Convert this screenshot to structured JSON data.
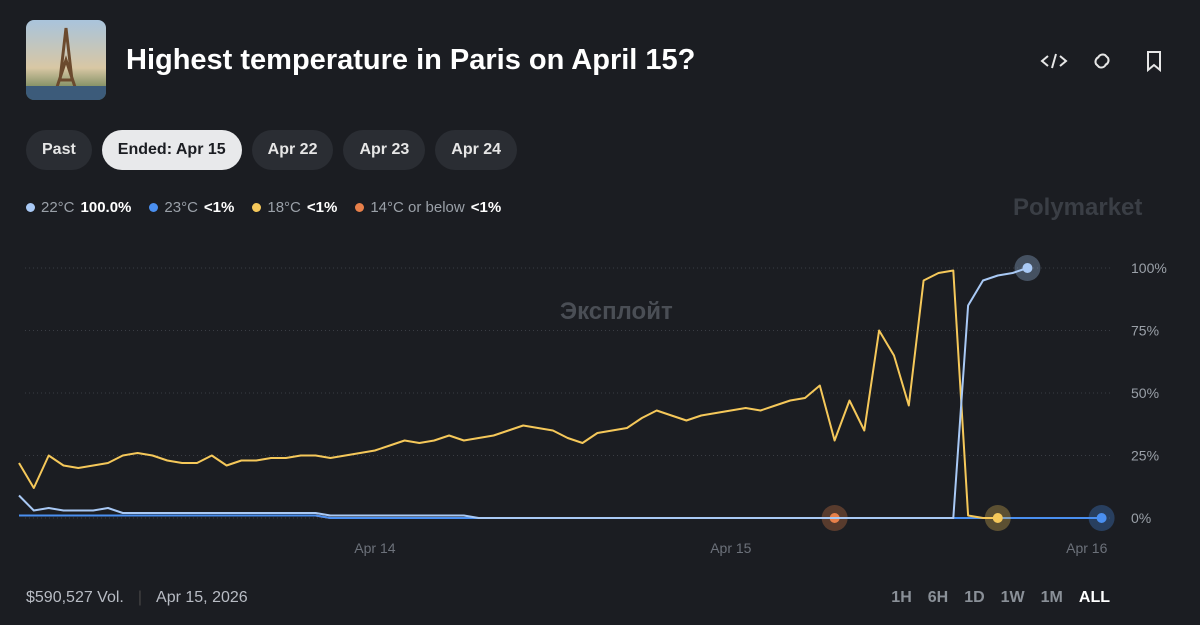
{
  "header": {
    "title": "Highest temperature in Paris on April 15?"
  },
  "filters": [
    "Past",
    "Ended: Apr 15",
    "Apr 22",
    "Apr 23",
    "Apr 24"
  ],
  "watermarks": [
    "Polymarket",
    "Эксплойт"
  ],
  "chart_data": {
    "type": "line",
    "categories": [
      null,
      null,
      null,
      null,
      null,
      null,
      null,
      null,
      null,
      null,
      null,
      null,
      null,
      null,
      null,
      null,
      null,
      null,
      null,
      null,
      null,
      null,
      null,
      null,
      "Apr 14",
      null,
      null,
      null,
      null,
      null,
      null,
      null,
      null,
      null,
      null,
      null,
      null,
      null,
      null,
      null,
      null,
      null,
      null,
      null,
      null,
      null,
      null,
      null,
      "Apr 15",
      null,
      null,
      null,
      null,
      null,
      null,
      null,
      null,
      null,
      null,
      null,
      null,
      null,
      null,
      null,
      null,
      null,
      null,
      null,
      null,
      null,
      null,
      null,
      "Apr 16",
      null
    ],
    "series": [
      {
        "name": "22°C",
        "current_label": "100.0%",
        "color": "#a9c9f5",
        "values": [
          9,
          3,
          4,
          3,
          3,
          3,
          4,
          2,
          2,
          2,
          2,
          2,
          2,
          2,
          2,
          2,
          2,
          2,
          2,
          2,
          2,
          1,
          1,
          1,
          1,
          1,
          1,
          1,
          1,
          1,
          1,
          0,
          0,
          0,
          0,
          0,
          0,
          0,
          0,
          0,
          0,
          0,
          0,
          0,
          0,
          0,
          0,
          0,
          0,
          0,
          0,
          0,
          0,
          0,
          0,
          0,
          0,
          0,
          0,
          0,
          0,
          0,
          0,
          0,
          85,
          95,
          97,
          98,
          100,
          null,
          null,
          null,
          null,
          null
        ]
      },
      {
        "name": "23°C",
        "current_label": "<1%",
        "color": "#4a8ff0",
        "values": [
          1,
          1,
          1,
          1,
          1,
          1,
          1,
          1,
          1,
          1,
          1,
          1,
          1,
          1,
          1,
          1,
          1,
          1,
          1,
          1,
          1,
          0,
          0,
          0,
          0,
          0,
          0,
          0,
          0,
          0,
          0,
          0,
          0,
          0,
          0,
          0,
          0,
          0,
          0,
          0,
          0,
          0,
          0,
          0,
          0,
          0,
          0,
          0,
          0,
          0,
          0,
          0,
          0,
          0,
          0,
          0,
          0,
          0,
          0,
          0,
          0,
          0,
          0,
          0,
          0,
          0,
          0,
          0,
          0,
          0,
          0,
          0,
          0,
          0
        ]
      },
      {
        "name": "18°C",
        "current_label": "<1%",
        "color": "#f5c85a",
        "values": [
          22,
          12,
          25,
          21,
          20,
          21,
          22,
          25,
          26,
          25,
          23,
          22,
          22,
          25,
          21,
          23,
          23,
          24,
          24,
          25,
          25,
          24,
          25,
          26,
          27,
          29,
          31,
          30,
          31,
          33,
          31,
          32,
          33,
          35,
          37,
          36,
          35,
          32,
          30,
          34,
          35,
          36,
          40,
          43,
          41,
          39,
          41,
          42,
          43,
          44,
          43,
          45,
          47,
          48,
          53,
          31,
          47,
          35,
          75,
          65,
          45,
          95,
          98,
          99,
          1,
          0,
          0,
          null,
          null,
          null,
          null,
          null,
          null,
          null
        ]
      },
      {
        "name": "14°C or below",
        "current_label": "<1%",
        "color": "#e8804a",
        "values": [
          1,
          1,
          1,
          1,
          1,
          1,
          1,
          1,
          1,
          1,
          1,
          1,
          1,
          1,
          1,
          1,
          1,
          1,
          1,
          1,
          1,
          0,
          0,
          0,
          0,
          0,
          0,
          0,
          0,
          0,
          0,
          0,
          0,
          0,
          0,
          0,
          0,
          0,
          0,
          0,
          0,
          0,
          0,
          0,
          0,
          0,
          0,
          0,
          0,
          0,
          0,
          0,
          0,
          0,
          0,
          0,
          null,
          null,
          null,
          null,
          null,
          null,
          null,
          null,
          null,
          null,
          null,
          null,
          null,
          null,
          null,
          null,
          null,
          null
        ]
      }
    ],
    "ylim": [
      0,
      100
    ],
    "yticks": [
      {
        "value": 0,
        "label": "0%"
      },
      {
        "value": 25,
        "label": "25%"
      },
      {
        "value": 50,
        "label": "50%"
      },
      {
        "value": 75,
        "label": "75%"
      },
      {
        "value": 100,
        "label": "100%"
      }
    ],
    "grid": true
  },
  "footer": {
    "volume": "$590,527 Vol.",
    "date": "Apr 15, 2026",
    "ranges": [
      "1H",
      "6H",
      "1D",
      "1W",
      "1M",
      "ALL"
    ],
    "selected_range": "ALL"
  }
}
